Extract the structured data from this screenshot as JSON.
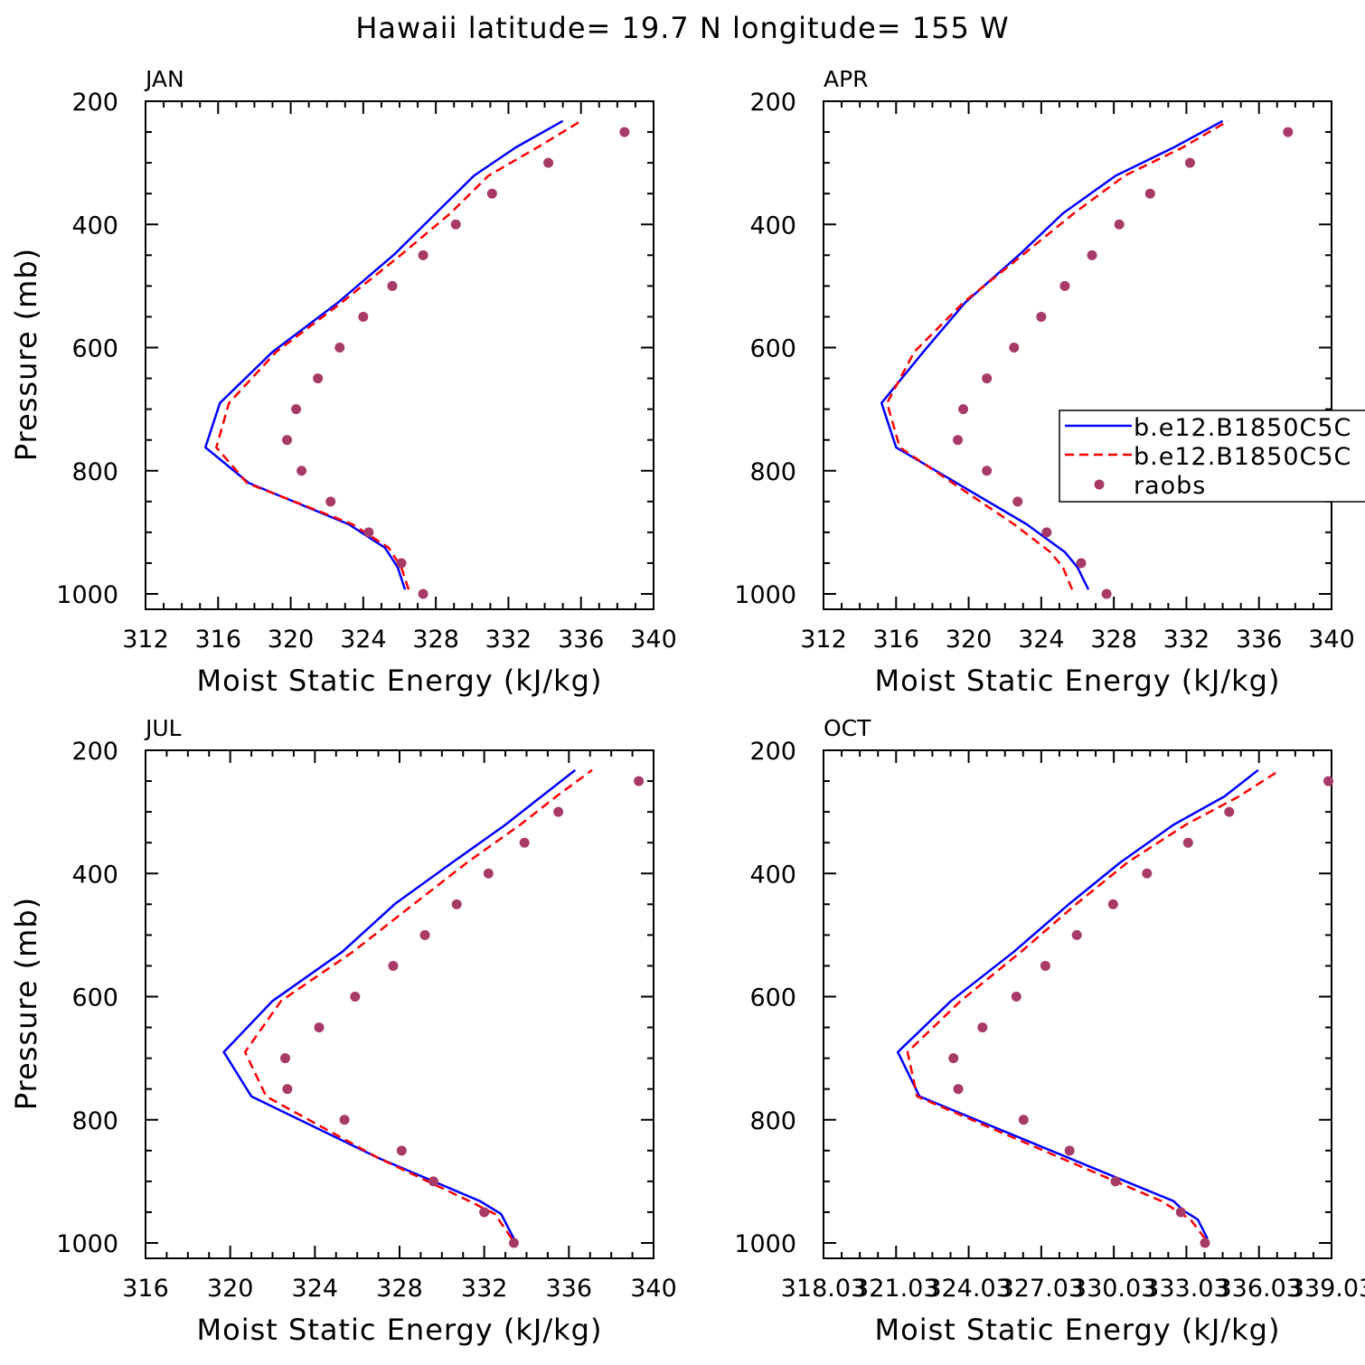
{
  "title": "Hawaii  latitude= 19.7 N longitude= 155 W",
  "colors": {
    "series1": "#0000ff",
    "series2": "#ff0000",
    "raobs": "#a83a68"
  },
  "legend": {
    "placement": "right of APR panel",
    "entries": [
      "b.e12.B1850C5C",
      "b.e12.B1850C5C",
      "raobs"
    ]
  },
  "chart_data": [
    {
      "type": "line",
      "panel_label": "JAN",
      "xlabel": "Moist Static Energy (kJ/kg)",
      "ylabel": "Pressure (mb)",
      "xlim": [
        312,
        340
      ],
      "ylim": [
        1000,
        200
      ],
      "xticks": [
        "312",
        "316",
        "320",
        "324",
        "328",
        "332",
        "336",
        "340"
      ],
      "yticks": [
        "200",
        "400",
        "600",
        "800",
        "1000"
      ],
      "series": [
        {
          "style": "solid",
          "x": [
            326.3,
            325.9,
            325.2,
            323.2,
            317.7,
            315.3,
            316.1,
            319.0,
            322.6,
            325.7,
            328.0,
            330.1,
            332.4,
            335.0
          ],
          "y": [
            993,
            957,
            925,
            887,
            820,
            762,
            690,
            607,
            527,
            449,
            382,
            321,
            275,
            232
          ]
        },
        {
          "style": "dashed",
          "x": [
            326.5,
            326.1,
            325.4,
            323.4,
            317.6,
            315.9,
            316.6,
            319.2,
            322.8,
            326.1,
            328.8,
            330.9,
            333.6,
            336.0
          ],
          "y": [
            993,
            957,
            925,
            887,
            820,
            762,
            690,
            607,
            527,
            449,
            382,
            321,
            275,
            232
          ]
        },
        {
          "style": "points",
          "name": "raobs",
          "x": [
            327.3,
            326.1,
            324.3,
            322.2,
            320.6,
            319.8,
            320.3,
            321.5,
            322.7,
            324.0,
            325.6,
            327.3,
            329.1,
            331.1,
            334.2,
            338.4
          ],
          "y": [
            1000,
            950,
            900,
            850,
            800,
            750,
            700,
            650,
            600,
            550,
            500,
            450,
            400,
            350,
            300,
            250
          ]
        }
      ]
    },
    {
      "type": "line",
      "panel_label": "APR",
      "xlabel": "Moist Static Energy (kJ/kg)",
      "ylabel": "",
      "xlim": [
        312,
        340
      ],
      "ylim": [
        1000,
        200
      ],
      "xticks": [
        "312",
        "316",
        "320",
        "324",
        "328",
        "332",
        "336",
        "340"
      ],
      "yticks": [
        "200",
        "400",
        "600",
        "800",
        "1000"
      ],
      "series": [
        {
          "style": "solid",
          "x": [
            326.6,
            326.0,
            325.3,
            323.2,
            316.0,
            315.2,
            317.5,
            319.8,
            322.8,
            325.2,
            328.1,
            331.3,
            334.0
          ],
          "y": [
            993,
            957,
            932,
            887,
            762,
            690,
            607,
            527,
            449,
            382,
            321,
            275,
            232
          ]
        },
        {
          "style": "dashed",
          "x": [
            325.7,
            325.2,
            324.5,
            322.5,
            316.2,
            315.5,
            317.0,
            319.7,
            323.0,
            325.8,
            328.6,
            331.8,
            334.3
          ],
          "y": [
            993,
            957,
            932,
            887,
            762,
            690,
            607,
            527,
            449,
            382,
            321,
            275,
            232
          ]
        },
        {
          "style": "points",
          "name": "raobs",
          "x": [
            327.6,
            326.2,
            324.3,
            322.7,
            321.0,
            319.4,
            319.7,
            321.0,
            322.5,
            324.0,
            325.3,
            326.8,
            328.3,
            330.0,
            332.2,
            337.6
          ],
          "y": [
            1000,
            950,
            900,
            850,
            800,
            750,
            700,
            650,
            600,
            550,
            500,
            450,
            400,
            350,
            300,
            250
          ]
        }
      ]
    },
    {
      "type": "line",
      "panel_label": "JUL",
      "xlabel": "Moist Static Energy (kJ/kg)",
      "ylabel": "Pressure (mb)",
      "xlim": [
        316,
        340
      ],
      "ylim": [
        1000,
        200
      ],
      "xticks": [
        "316",
        "320",
        "324",
        "328",
        "332",
        "336",
        "340"
      ],
      "yticks": [
        "200",
        "400",
        "600",
        "800",
        "1000"
      ],
      "series": [
        {
          "style": "solid",
          "x": [
            333.4,
            332.8,
            331.8,
            327.0,
            321.0,
            319.7,
            322.0,
            325.3,
            327.8,
            330.5,
            333.0,
            334.7,
            336.3
          ],
          "y": [
            993,
            953,
            932,
            862,
            762,
            690,
            607,
            527,
            449,
            382,
            321,
            275,
            232
          ]
        },
        {
          "style": "dashed",
          "x": [
            333.3,
            332.5,
            331.3,
            327.0,
            321.7,
            320.7,
            322.4,
            325.8,
            328.7,
            331.2,
            333.7,
            335.4,
            337.1
          ],
          "y": [
            993,
            953,
            932,
            862,
            762,
            690,
            607,
            527,
            449,
            382,
            321,
            275,
            232
          ]
        },
        {
          "style": "points",
          "name": "raobs",
          "x": [
            333.4,
            332.0,
            329.6,
            328.1,
            325.4,
            322.7,
            322.6,
            324.2,
            325.9,
            327.7,
            329.2,
            330.7,
            332.2,
            333.9,
            335.5,
            339.3
          ],
          "y": [
            1000,
            950,
            900,
            850,
            800,
            750,
            700,
            650,
            600,
            550,
            500,
            450,
            400,
            350,
            300,
            250
          ]
        }
      ]
    },
    {
      "type": "line",
      "panel_label": "OCT",
      "xlabel": "Moist Static Energy (kJ/kg)",
      "ylabel": "",
      "xlim": [
        318.03,
        339.03
      ],
      "ylim": [
        1000,
        200
      ],
      "xticks": [
        "318.03",
        "321.03",
        "324.03",
        "327.03",
        "330.03",
        "333.03",
        "336.03",
        "339.03"
      ],
      "yticks": [
        "200",
        "400",
        "600",
        "800",
        "1000"
      ],
      "series": [
        {
          "style": "solid",
          "x": [
            333.9,
            333.5,
            332.9,
            332.5,
            322.0,
            321.1,
            323.3,
            325.9,
            328.2,
            330.3,
            332.5,
            334.6,
            336.0
          ],
          "y": [
            993,
            962,
            947,
            932,
            762,
            690,
            607,
            527,
            449,
            382,
            321,
            275,
            232
          ]
        },
        {
          "style": "dashed",
          "x": [
            333.8,
            333.2,
            332.6,
            332.0,
            321.9,
            321.5,
            323.7,
            326.2,
            328.5,
            330.6,
            333.0,
            335.2,
            336.9
          ],
          "y": [
            993,
            962,
            947,
            932,
            762,
            690,
            607,
            527,
            449,
            382,
            321,
            275,
            232
          ]
        },
        {
          "style": "points",
          "name": "raobs",
          "x": [
            333.8,
            332.8,
            330.1,
            328.2,
            326.3,
            323.6,
            323.4,
            324.6,
            326.0,
            327.2,
            328.5,
            330.0,
            331.4,
            333.1,
            334.8,
            338.9
          ],
          "y": [
            1000,
            950,
            900,
            850,
            800,
            750,
            700,
            650,
            600,
            550,
            500,
            450,
            400,
            350,
            300,
            250
          ]
        }
      ]
    }
  ]
}
